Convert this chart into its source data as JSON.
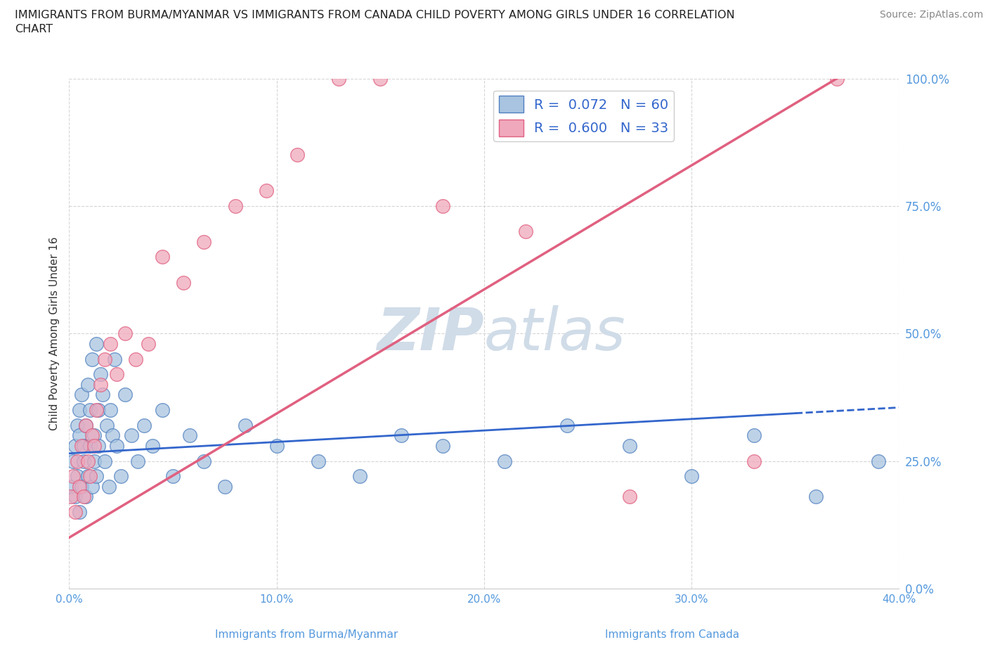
{
  "title_line1": "IMMIGRANTS FROM BURMA/MYANMAR VS IMMIGRANTS FROM CANADA CHILD POVERTY AMONG GIRLS UNDER 16 CORRELATION",
  "title_line2": "CHART",
  "source": "Source: ZipAtlas.com",
  "xlabel_bottom": "Immigrants from Burma/Myanmar",
  "xlabel_bottom2": "Immigrants from Canada",
  "ylabel": "Child Poverty Among Girls Under 16",
  "xlim": [
    0.0,
    0.4
  ],
  "ylim": [
    0.0,
    1.0
  ],
  "xticks": [
    0.0,
    0.1,
    0.2,
    0.3,
    0.4
  ],
  "yticks": [
    0.0,
    0.25,
    0.5,
    0.75,
    1.0
  ],
  "ytick_labels": [
    "0.0%",
    "25.0%",
    "50.0%",
    "75.0%",
    "100.0%"
  ],
  "xtick_labels": [
    "0.0%",
    "10.0%",
    "20.0%",
    "30.0%",
    "40.0%"
  ],
  "blue_R": 0.072,
  "blue_N": 60,
  "pink_R": 0.6,
  "pink_N": 33,
  "blue_color": "#a8c4e0",
  "pink_color": "#f0a8bc",
  "blue_edge_color": "#5080c0",
  "pink_edge_color": "#e06080",
  "blue_line_color": "#3366cc",
  "pink_line_color": "#e06080",
  "watermark_color": "#d0dce8",
  "background_color": "#ffffff",
  "tick_color": "#5599dd",
  "blue_scatter_x": [
    0.001,
    0.002,
    0.003,
    0.003,
    0.004,
    0.004,
    0.005,
    0.005,
    0.005,
    0.006,
    0.006,
    0.007,
    0.007,
    0.008,
    0.008,
    0.009,
    0.009,
    0.01,
    0.01,
    0.011,
    0.011,
    0.012,
    0.012,
    0.013,
    0.013,
    0.014,
    0.014,
    0.015,
    0.016,
    0.017,
    0.018,
    0.019,
    0.02,
    0.021,
    0.022,
    0.023,
    0.025,
    0.027,
    0.03,
    0.033,
    0.036,
    0.04,
    0.045,
    0.05,
    0.058,
    0.065,
    0.075,
    0.085,
    0.1,
    0.12,
    0.14,
    0.16,
    0.18,
    0.21,
    0.24,
    0.27,
    0.3,
    0.33,
    0.36,
    0.39
  ],
  "blue_scatter_y": [
    0.2,
    0.25,
    0.18,
    0.28,
    0.22,
    0.32,
    0.15,
    0.3,
    0.35,
    0.2,
    0.38,
    0.25,
    0.28,
    0.18,
    0.32,
    0.22,
    0.4,
    0.28,
    0.35,
    0.2,
    0.45,
    0.3,
    0.25,
    0.48,
    0.22,
    0.35,
    0.28,
    0.42,
    0.38,
    0.25,
    0.32,
    0.2,
    0.35,
    0.3,
    0.45,
    0.28,
    0.22,
    0.38,
    0.3,
    0.25,
    0.32,
    0.28,
    0.35,
    0.22,
    0.3,
    0.25,
    0.2,
    0.32,
    0.28,
    0.25,
    0.22,
    0.3,
    0.28,
    0.25,
    0.32,
    0.28,
    0.22,
    0.3,
    0.18,
    0.25
  ],
  "pink_scatter_x": [
    0.001,
    0.002,
    0.003,
    0.004,
    0.005,
    0.006,
    0.007,
    0.008,
    0.009,
    0.01,
    0.011,
    0.012,
    0.013,
    0.015,
    0.017,
    0.02,
    0.023,
    0.027,
    0.032,
    0.038,
    0.045,
    0.055,
    0.065,
    0.08,
    0.095,
    0.11,
    0.13,
    0.15,
    0.18,
    0.22,
    0.27,
    0.33,
    0.37
  ],
  "pink_scatter_y": [
    0.18,
    0.22,
    0.15,
    0.25,
    0.2,
    0.28,
    0.18,
    0.32,
    0.25,
    0.22,
    0.3,
    0.28,
    0.35,
    0.4,
    0.45,
    0.48,
    0.42,
    0.5,
    0.45,
    0.48,
    0.65,
    0.6,
    0.68,
    0.75,
    0.78,
    0.85,
    1.0,
    1.0,
    0.75,
    0.7,
    0.18,
    0.25,
    1.0
  ],
  "blue_trend_x0": 0.0,
  "blue_trend_y0": 0.265,
  "blue_trend_x1": 0.4,
  "blue_trend_y1": 0.355,
  "pink_trend_x0": 0.0,
  "pink_trend_y0": 0.1,
  "pink_trend_x1": 0.37,
  "pink_trend_y1": 1.0
}
